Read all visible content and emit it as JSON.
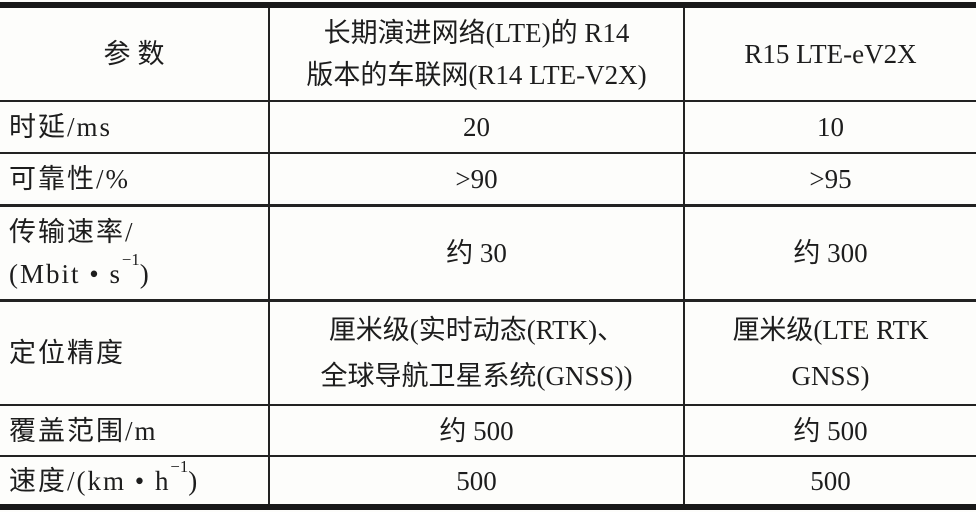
{
  "table": {
    "header": {
      "param": "参数",
      "col2_line1": "长期演进网络(LTE)的 R14",
      "col2_line2": "版本的车联网(R14 LTE-V2X)",
      "col3": "R15 LTE-eV2X"
    },
    "rows": [
      {
        "label": "时延/ms",
        "v1": "20",
        "v2": "10"
      },
      {
        "label": "可靠性/%",
        "v1": ">90",
        "v2": ">95"
      },
      {
        "label_line1": "传输速率/",
        "label_line2_pre": "(Mbit • s",
        "label_sup": "−1",
        "label_line2_post": ")",
        "v1": "约 30",
        "v2": "约 300"
      },
      {
        "label": "定位精度",
        "v1_line1": "厘米级(实时动态(RTK)、",
        "v1_line2": "全球导航卫星系统(GNSS))",
        "v2_line1": "厘米级(LTE RTK",
        "v2_line2": "GNSS)"
      },
      {
        "label": "覆盖范围/m",
        "v1": "约 500",
        "v2": "约 500"
      },
      {
        "label_pre": "速度/(km • h",
        "label_sup": "−1",
        "label_post": ")",
        "v1": "500",
        "v2": "500"
      }
    ]
  },
  "colors": {
    "border": "#191919",
    "text": "#1d1d1d",
    "background": "#fdfdfb"
  }
}
